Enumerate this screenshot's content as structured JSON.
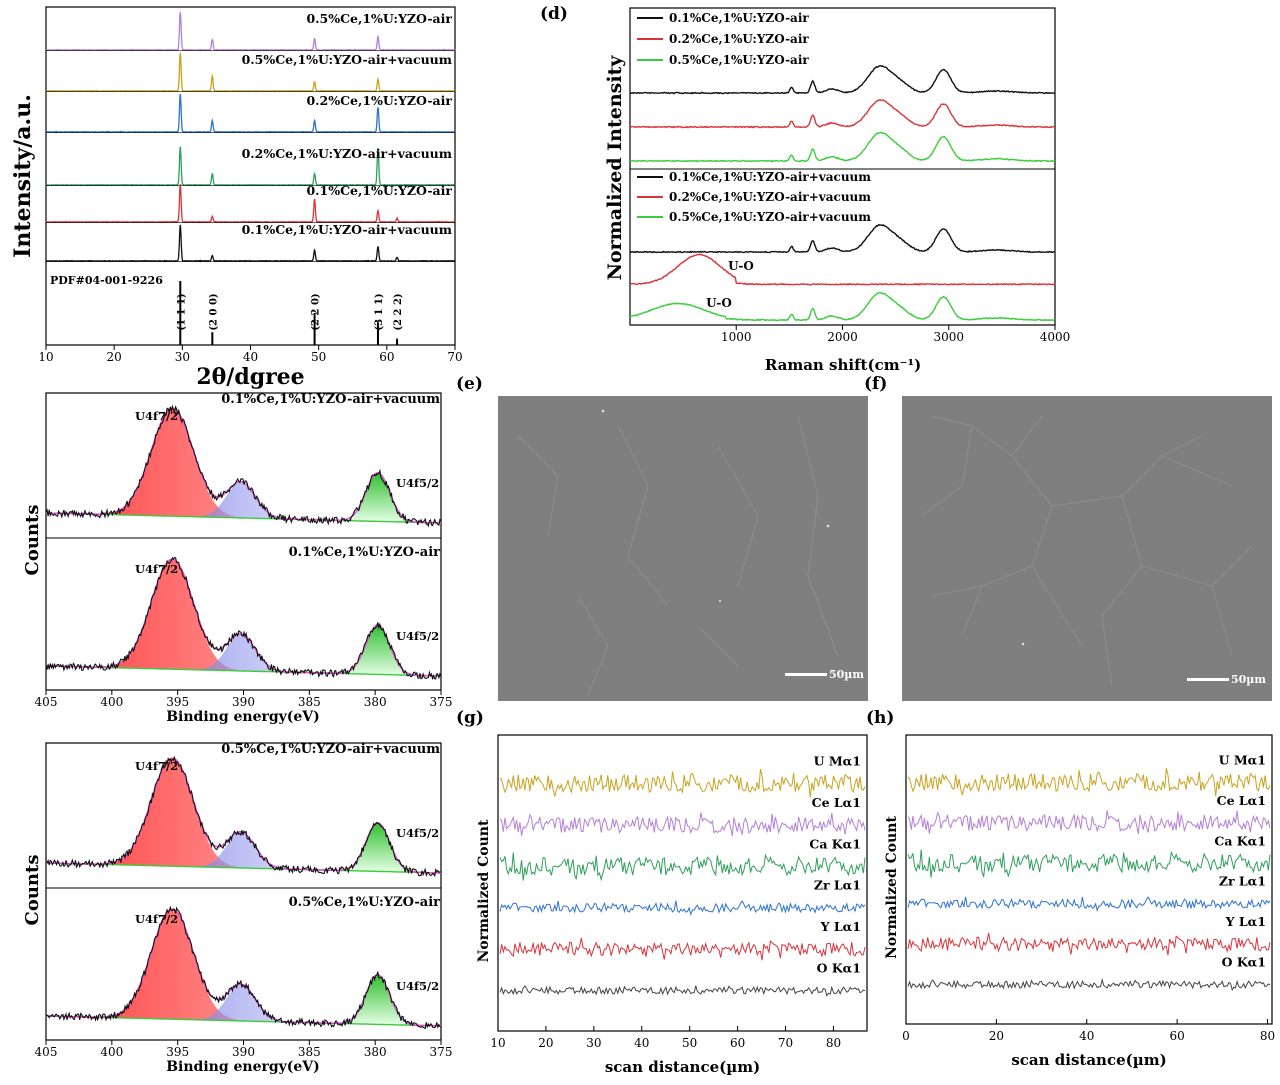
{
  "panel_letters": {
    "d": "(d)",
    "e": "(e)",
    "f": "(f)",
    "g": "(g)",
    "h": "(h)"
  },
  "sem": {
    "e_scale": "50µm",
    "f_scale": "50µm"
  },
  "chart_data": [
    {
      "id": "xrd",
      "type": "line",
      "xlabel": "2θ/dgree",
      "ylabel": "Intensity/a.u.",
      "xlim": [
        10,
        70
      ],
      "xticks": [
        10,
        20,
        30,
        40,
        50,
        60,
        70
      ],
      "series": [
        {
          "name": "0.5%Ce,1%U:YZO-air",
          "color": "#b57fd6",
          "peaks": [
            [
              29.7,
              1.0
            ],
            [
              34.4,
              0.28
            ],
            [
              49.4,
              0.3
            ],
            [
              58.7,
              0.35
            ]
          ]
        },
        {
          "name": "0.5%Ce,1%U:YZO-air+vacuum",
          "color": "#c9a21f",
          "peaks": [
            [
              29.7,
              1.0
            ],
            [
              34.4,
              0.4
            ],
            [
              49.4,
              0.25
            ],
            [
              58.7,
              0.3
            ]
          ]
        },
        {
          "name": "0.2%Ce,1%U:YZO-air",
          "color": "#2f73cf",
          "peaks": [
            [
              29.7,
              1.0
            ],
            [
              34.4,
              0.3
            ],
            [
              49.4,
              0.3
            ],
            [
              58.7,
              0.65
            ]
          ]
        },
        {
          "name": "0.2%Ce,1%U:YZO-air+vacuum",
          "color": "#2ea05a",
          "peaks": [
            [
              29.7,
              1.0
            ],
            [
              34.4,
              0.3
            ],
            [
              49.4,
              0.3
            ],
            [
              58.7,
              0.95
            ]
          ]
        },
        {
          "name": "0.1%Ce,1%U:YZO-air",
          "color": "#d9343a",
          "peaks": [
            [
              29.7,
              1.0
            ],
            [
              34.4,
              0.15
            ],
            [
              49.4,
              0.6
            ],
            [
              58.7,
              0.3
            ],
            [
              61.5,
              0.1
            ]
          ]
        },
        {
          "name": "0.1%Ce,1%U:YZO-air+vacuum",
          "color": "#111111",
          "peaks": [
            [
              29.7,
              1.0
            ],
            [
              34.4,
              0.15
            ],
            [
              49.4,
              0.3
            ],
            [
              58.7,
              0.4
            ],
            [
              61.5,
              0.1
            ]
          ]
        }
      ],
      "reference": {
        "name": "PDF#04-001-9226",
        "lines": [
          {
            "x": 29.7,
            "h": 1.0,
            "label": "(1 1 1)"
          },
          {
            "x": 34.4,
            "h": 0.2,
            "label": "(2 0 0)"
          },
          {
            "x": 49.4,
            "h": 0.5,
            "label": "(2 2 0)"
          },
          {
            "x": 58.7,
            "h": 0.35,
            "label": "(3 1 1)"
          },
          {
            "x": 61.5,
            "h": 0.1,
            "label": "(2 2 2)"
          }
        ]
      }
    },
    {
      "id": "raman",
      "type": "line",
      "xlabel": "Raman shift(cm⁻¹)",
      "ylabel": "Normalized Intensity",
      "xlim": [
        0,
        4000
      ],
      "xticks": [
        1000,
        2000,
        3000,
        4000
      ],
      "series": [
        {
          "name": "0.1%Ce,1%U:YZO-air",
          "color": "#111111",
          "group": "top"
        },
        {
          "name": "0.2%Ce,1%U:YZO-air",
          "color": "#d9343a",
          "group": "top"
        },
        {
          "name": "0.5%Ce,1%U:YZO-air",
          "color": "#3ccb3c",
          "group": "top"
        },
        {
          "name": "0.1%Ce,1%U:YZO-air+vacuum",
          "color": "#111111",
          "group": "bottom"
        },
        {
          "name": "0.2%Ce,1%U:YZO-air+vacuum",
          "color": "#d9343a",
          "group": "bottom",
          "annotation": "U-O"
        },
        {
          "name": "0.5%Ce,1%U:YZO-air+vacuum",
          "color": "#3ccb3c",
          "group": "bottom",
          "annotation": "U-O"
        }
      ]
    },
    {
      "id": "xps-1",
      "type": "line",
      "xlabel": "Binding energy(eV)",
      "ylabel": "Counts",
      "xlim": [
        405,
        375
      ],
      "xticks": [
        405,
        400,
        395,
        390,
        385,
        380,
        375
      ],
      "series": [
        {
          "name": "0.1%Ce,1%U:YZO-air+vacuum",
          "annotations": [
            "U4f7/2",
            "U4f5/2"
          ]
        },
        {
          "name": "0.1%Ce,1%U:YZO-air",
          "annotations": [
            "U4f7/2",
            "U4f5/2"
          ]
        }
      ]
    },
    {
      "id": "xps-2",
      "type": "line",
      "xlabel": "Binding energy(eV)",
      "ylabel": "Counts",
      "xlim": [
        405,
        375
      ],
      "xticks": [
        405,
        400,
        395,
        390,
        385,
        380,
        375
      ],
      "series": [
        {
          "name": "0.5%Ce,1%U:YZO-air+vacuum",
          "annotations": [
            "U4f7/2",
            "U4f5/2"
          ]
        },
        {
          "name": "0.5%Ce,1%U:YZO-air",
          "annotations": [
            "U4f7/2",
            "U4f5/2"
          ]
        }
      ]
    },
    {
      "id": "eds-g",
      "type": "line",
      "xlabel": "scan distance(µm)",
      "ylabel": "Normalized Count",
      "xlim": [
        10,
        87
      ],
      "xticks": [
        10,
        20,
        30,
        40,
        50,
        60,
        70,
        80
      ],
      "series": [
        {
          "name": "U Mα1",
          "color": "#c9a21f"
        },
        {
          "name": "Ce Lα1",
          "color": "#b57fd6"
        },
        {
          "name": "Ca Kα1",
          "color": "#2ea05a"
        },
        {
          "name": "Zr Lα1",
          "color": "#2f73cf"
        },
        {
          "name": "Y Lα1",
          "color": "#d9343a"
        },
        {
          "name": "O Kα1",
          "color": "#444444"
        }
      ]
    },
    {
      "id": "eds-h",
      "type": "line",
      "xlabel": "scan distance(µm)",
      "ylabel": "Normalized Count",
      "xlim": [
        0,
        81
      ],
      "xticks": [
        0,
        20,
        40,
        60,
        80
      ],
      "series": [
        {
          "name": "U Mα1",
          "color": "#c9a21f"
        },
        {
          "name": "Ce Lα1",
          "color": "#b57fd6"
        },
        {
          "name": "Ca Kα1",
          "color": "#2ea05a"
        },
        {
          "name": "Zr Lα1",
          "color": "#2f73cf"
        },
        {
          "name": "Y Lα1",
          "color": "#d9343a"
        },
        {
          "name": "O Kα1",
          "color": "#444444"
        }
      ]
    }
  ]
}
